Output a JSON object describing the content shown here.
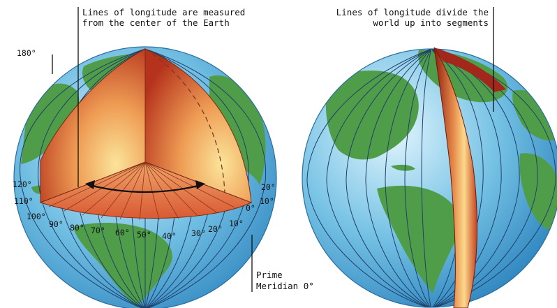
{
  "left_globe": {
    "caption_line1": "Lines of longitude are measured",
    "caption_line2": "from the center of the Earth",
    "label_180": "180°",
    "degree_labels": [
      "120°",
      "110°",
      "100°",
      "90°",
      "80°",
      "70°",
      "60°",
      "50°",
      "40°",
      "30°",
      "20°",
      "10°",
      "0°",
      "10°",
      "20°"
    ],
    "prime_meridian_line1": "Prime",
    "prime_meridian_line2": "Meridian 0°"
  },
  "right_globe": {
    "caption_line1": "Lines of longitude divide the",
    "caption_line2": "world up into segments"
  },
  "colors": {
    "ocean": "#5fb1dc",
    "ocean_highlight": "#d6effb",
    "land": "#4f9d48",
    "meridian": "#1f3f6a",
    "wedge_dark": "#b8341c",
    "wedge_light": "#f7d57e"
  }
}
